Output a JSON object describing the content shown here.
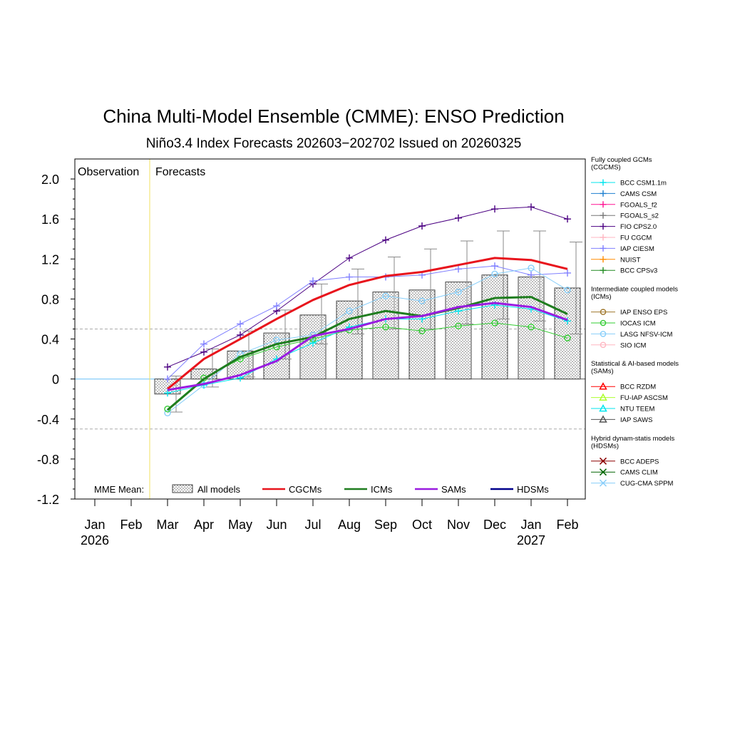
{
  "chart_data": {
    "type": "line",
    "title": "China Multi-Model Ensemble (CMME): ENSO Prediction",
    "subtitle": "Niño3.4 Index Forecasts 202603−202702 Issued on 20260325",
    "ylim": [
      -1.2,
      2.2
    ],
    "yticks": [
      "-1.2",
      "-0.8",
      "-0.4",
      "0",
      "0.4",
      "0.8",
      "1.2",
      "1.6",
      "2.0"
    ],
    "ytick_values": [
      -1.2,
      -0.8,
      -0.4,
      0,
      0.4,
      0.8,
      1.2,
      1.6,
      2.0
    ],
    "months": [
      "Jan",
      "Feb",
      "Mar",
      "Apr",
      "May",
      "Jun",
      "Jul",
      "Aug",
      "Sep",
      "Oct",
      "Nov",
      "Dec",
      "Jan",
      "Feb"
    ],
    "years": [
      {
        "text": "2026",
        "index": 0
      },
      {
        "text": "2027",
        "index": 12
      }
    ],
    "region_labels": {
      "observation": "Observation",
      "forecasts": "Forecasts"
    },
    "threshold": 0.5,
    "forecast_start_index": 2,
    "ensemble": {
      "name": "All models",
      "values": [
        -0.15,
        0.1,
        0.28,
        0.46,
        0.64,
        0.78,
        0.87,
        0.89,
        0.97,
        1.04,
        1.02,
        0.91
      ],
      "upper": [
        0.03,
        0.3,
        0.48,
        0.69,
        0.95,
        1.1,
        1.22,
        1.3,
        1.38,
        1.48,
        1.48,
        1.37
      ],
      "lower": [
        -0.33,
        -0.08,
        0.02,
        0.2,
        0.35,
        0.45,
        0.5,
        0.5,
        0.55,
        0.6,
        0.58,
        0.45
      ]
    },
    "mme_means": [
      {
        "name": "CGCMs",
        "color": "#e8141c",
        "values": [
          -0.1,
          0.2,
          0.4,
          0.6,
          0.79,
          0.94,
          1.03,
          1.07,
          1.14,
          1.21,
          1.19,
          1.1
        ]
      },
      {
        "name": "ICMs",
        "color": "#1f7d1f",
        "values": [
          -0.31,
          0.0,
          0.22,
          0.35,
          0.42,
          0.6,
          0.68,
          0.63,
          0.71,
          0.81,
          0.82,
          0.65
        ]
      },
      {
        "name": "SAMs",
        "color": "#9a1ce0",
        "values": [
          -0.11,
          -0.05,
          0.04,
          0.18,
          0.43,
          0.5,
          0.6,
          0.63,
          0.72,
          0.76,
          0.72,
          0.59
        ]
      },
      {
        "name": "HDSMs",
        "color": "#00008b",
        "values": []
      }
    ],
    "mme_label": "MME Mean:",
    "models": [
      {
        "name": "FIO CPS2.0",
        "color": "#4b0082",
        "marker": "plus",
        "values": [
          0.12,
          0.27,
          0.44,
          0.68,
          0.95,
          1.21,
          1.39,
          1.53,
          1.61,
          1.7,
          1.72,
          1.6
        ]
      },
      {
        "name": "IAP CIESM",
        "color": "#8080ff",
        "marker": "plus",
        "values": [
          0.0,
          0.35,
          0.55,
          0.73,
          0.98,
          1.02,
          1.02,
          1.04,
          1.1,
          1.13,
          1.04,
          1.06
        ]
      },
      {
        "name": "LASG NFSV-ICM",
        "color": "#87cefa",
        "marker": "circle",
        "values": [
          -0.34,
          -0.06,
          0.25,
          0.39,
          0.44,
          0.68,
          0.83,
          0.78,
          0.87,
          1.05,
          1.11,
          0.89
        ]
      },
      {
        "name": "IOCAS ICM",
        "color": "#33cc33",
        "marker": "circle",
        "values": [
          -0.3,
          0.01,
          0.2,
          0.32,
          0.4,
          0.49,
          0.52,
          0.48,
          0.53,
          0.56,
          0.52,
          0.41
        ]
      },
      {
        "name": "BCC CSM1.1m",
        "color": "#00e5ee",
        "marker": "plus",
        "values": [
          -0.14,
          -0.06,
          0.01,
          0.2,
          0.36,
          0.52,
          0.6,
          0.6,
          0.68,
          0.74,
          0.7,
          0.58
        ]
      }
    ],
    "legend": [
      {
        "title": "Fully coupled GCMs\n(CGCMS)",
        "items": [
          {
            "name": "BCC CSM1.1m",
            "color": "#00e5ee",
            "marker": "plus"
          },
          {
            "name": "CAMS CSM",
            "color": "#1e7fd0",
            "marker": "plus"
          },
          {
            "name": "FGOALS_f2",
            "color": "#ff1493",
            "marker": "plus"
          },
          {
            "name": "FGOALS_s2",
            "color": "#777777",
            "marker": "plus"
          },
          {
            "name": "FIO CPS2.0",
            "color": "#4b0082",
            "marker": "plus"
          },
          {
            "name": "FU CGCM",
            "color": "#ffb6c1",
            "marker": "plus"
          },
          {
            "name": "IAP CIESM",
            "color": "#8080ff",
            "marker": "plus"
          },
          {
            "name": "NUIST",
            "color": "#ff8c00",
            "marker": "plus"
          },
          {
            "name": "BCC CPSv3",
            "color": "#228b22",
            "marker": "plus"
          }
        ]
      },
      {
        "title": "Intermediate coupled models\n(ICMs)",
        "items": [
          {
            "name": "IAP ENSO EPS",
            "color": "#a0782d",
            "marker": "circle"
          },
          {
            "name": "IOCAS ICM",
            "color": "#33cc33",
            "marker": "circle"
          },
          {
            "name": "LASG NFSV-ICM",
            "color": "#87cefa",
            "marker": "circle"
          },
          {
            "name": "SIO ICM",
            "color": "#ffb6c1",
            "marker": "circle"
          }
        ]
      },
      {
        "title": "Statistical & AI-based models\n(SAMs)",
        "items": [
          {
            "name": "BCC RZDM",
            "color": "#ff0000",
            "marker": "triangle"
          },
          {
            "name": "FU-IAP ASCSM",
            "color": "#adff2f",
            "marker": "triangle"
          },
          {
            "name": "NTU TEEM",
            "color": "#00e5ee",
            "marker": "triangle"
          },
          {
            "name": "IAP SAWS",
            "color": "#555555",
            "marker": "triangle"
          }
        ]
      },
      {
        "title": "Hybrid dynam-statis models\n(HDSMs)",
        "items": [
          {
            "name": "BCC ADEPS",
            "color": "#8b0000",
            "marker": "cross"
          },
          {
            "name": "CAMS CLIM",
            "color": "#006400",
            "marker": "cross"
          },
          {
            "name": "CUG-CMA SPPM",
            "color": "#87cefa",
            "marker": "cross"
          }
        ]
      }
    ]
  }
}
